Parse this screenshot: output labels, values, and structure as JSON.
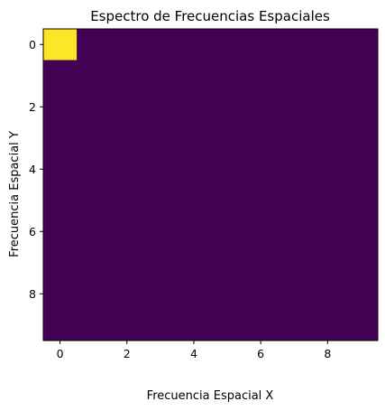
{
  "chart_data": {
    "type": "heatmap",
    "title": "Espectro de Frecuencias Espaciales",
    "xlabel": "Frecuencia Espacial X",
    "ylabel": "Frecuencia Espacial Y",
    "x_ticks": [
      "0",
      "2",
      "4",
      "6",
      "8"
    ],
    "y_ticks": [
      "0",
      "2",
      "4",
      "6",
      "8"
    ],
    "x_tick_values": [
      0,
      2,
      4,
      6,
      8
    ],
    "y_tick_values": [
      0,
      2,
      4,
      6,
      8
    ],
    "xlim": [
      -0.5,
      9.5
    ],
    "ylim": [
      9.5,
      -0.5
    ],
    "colormap": [
      "#440154",
      "#fde725"
    ],
    "grid": false,
    "values": [
      [
        1,
        0,
        0,
        0,
        0,
        0,
        0,
        0,
        0,
        0
      ],
      [
        0,
        0,
        0,
        0,
        0,
        0,
        0,
        0,
        0,
        0
      ],
      [
        0,
        0,
        0,
        0,
        0,
        0,
        0,
        0,
        0,
        0
      ],
      [
        0,
        0,
        0,
        0,
        0,
        0,
        0,
        0,
        0,
        0
      ],
      [
        0,
        0,
        0,
        0,
        0,
        0,
        0,
        0,
        0,
        0
      ],
      [
        0,
        0,
        0,
        0,
        0,
        0,
        0,
        0,
        0,
        0
      ],
      [
        0,
        0,
        0,
        0,
        0,
        0,
        0,
        0,
        0,
        0
      ],
      [
        0,
        0,
        0,
        0,
        0,
        0,
        0,
        0,
        0,
        0
      ],
      [
        0,
        0,
        0,
        0,
        0,
        0,
        0,
        0,
        0,
        0
      ],
      [
        0,
        0,
        0,
        0,
        0,
        0,
        0,
        0,
        0,
        0
      ]
    ]
  }
}
